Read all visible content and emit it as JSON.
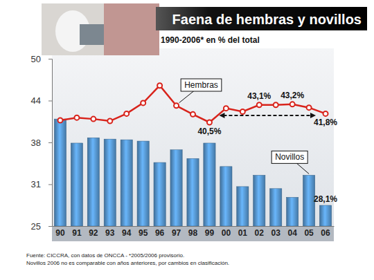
{
  "chart_data": {
    "type": "bar",
    "title": "Faena de hembras y novillos",
    "subtitle": "1990-2006* en % del total",
    "source": "Fuente: CICCRA, con datos de ONCCA - *2005/2006 provisorio.",
    "note": "Novillos 2006 no es comparable con años anteriores, por cambios en clasificación.",
    "categories": [
      "90",
      "91",
      "92",
      "93",
      "94",
      "95",
      "96",
      "97",
      "98",
      "99",
      "00",
      "01",
      "02",
      "03",
      "04",
      "05",
      "06"
    ],
    "series": [
      {
        "name": "Hembras",
        "type": "line",
        "color": "#d8231b",
        "marker": "circle",
        "line_style": "solid",
        "values": [
          40.8,
          41.2,
          41.0,
          40.7,
          41.8,
          43.4,
          46.0,
          43.0,
          41.7,
          40.5,
          42.6,
          42.1,
          43.1,
          43.1,
          43.2,
          42.7,
          41.8
        ],
        "value_labels": [
          null,
          null,
          null,
          null,
          null,
          null,
          null,
          null,
          null,
          "40,5%",
          null,
          null,
          "43,1%",
          null,
          "43,2%",
          null,
          "41,8%"
        ]
      },
      {
        "name": "Novillos",
        "type": "bar",
        "color": "#4f89bd",
        "values": [
          41.0,
          37.4,
          38.2,
          38.0,
          37.9,
          37.7,
          34.5,
          36.4,
          35.1,
          37.4,
          33.9,
          30.9,
          32.6,
          30.6,
          29.3,
          32.6,
          28.1
        ],
        "value_labels": [
          null,
          null,
          null,
          null,
          null,
          null,
          null,
          null,
          null,
          null,
          null,
          null,
          null,
          null,
          null,
          null,
          "28,1%"
        ]
      }
    ],
    "ylim": [
      25,
      50
    ],
    "yticks": [
      25,
      {
        "value": 31.25,
        "label": "31"
      },
      {
        "value": 37.5,
        "label": "38"
      },
      {
        "value": 43.75,
        "label": "44"
      },
      50
    ],
    "grid": false,
    "data_labels": true
  }
}
